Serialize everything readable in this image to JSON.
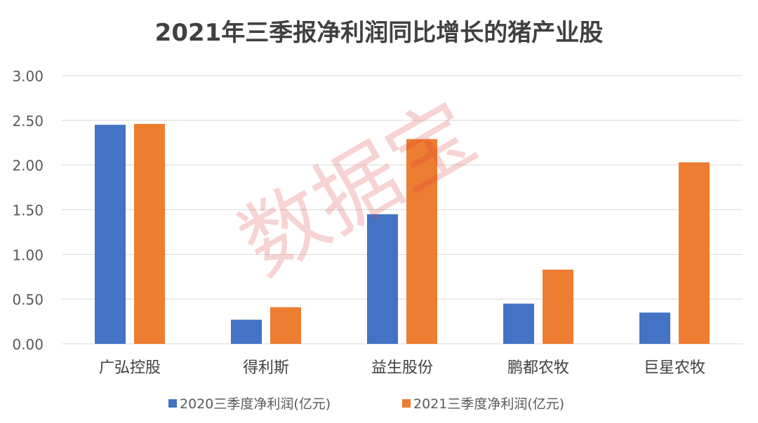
{
  "chart_data": {
    "type": "bar",
    "title": "2021年三季报净利润同比增长的猪产业股",
    "categories": [
      "广弘控股",
      "得利斯",
      "益生股份",
      "鹏都农牧",
      "巨星农牧"
    ],
    "series": [
      {
        "name": "2020三季度净利润(亿元)",
        "color": "#4472c4",
        "values": [
          2.45,
          0.27,
          1.45,
          0.45,
          0.35
        ]
      },
      {
        "name": "2021三季度净利润(亿元)",
        "color": "#ed7d31",
        "values": [
          2.46,
          0.41,
          2.29,
          0.83,
          2.03
        ]
      }
    ],
    "ylim": [
      0,
      3
    ],
    "yticks": [
      "0.00",
      "0.50",
      "1.00",
      "1.50",
      "2.00",
      "2.50",
      "3.00"
    ],
    "grid": true,
    "legend_position": "bottom",
    "watermark": "数据宝"
  }
}
